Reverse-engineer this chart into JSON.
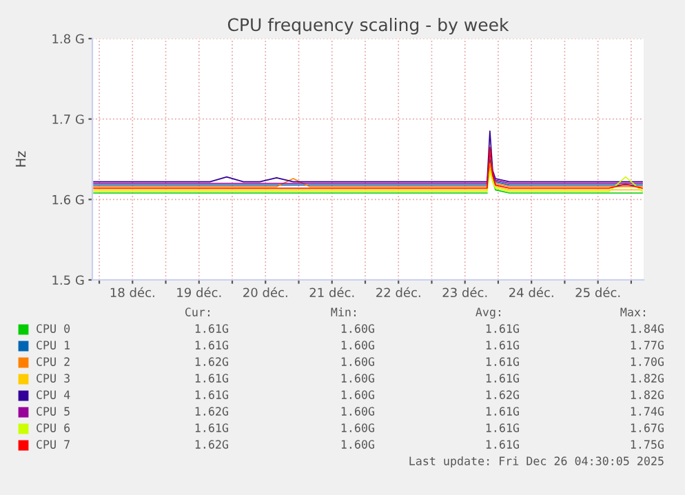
{
  "chart_data": {
    "type": "line",
    "title": "CPU frequency scaling - by week",
    "ylabel": "Hz",
    "x": [
      "2025-12-17T22:00",
      "2025-12-18T04:00",
      "2025-12-18T10:00",
      "2025-12-18T16:00",
      "2025-12-18T22:00",
      "2025-12-19T04:00",
      "2025-12-19T10:00",
      "2025-12-19T16:00",
      "2025-12-19T22:00",
      "2025-12-20T04:00",
      "2025-12-20T10:00",
      "2025-12-20T16:00",
      "2025-12-20T22:00",
      "2025-12-21T04:00",
      "2025-12-21T10:00",
      "2025-12-21T16:00",
      "2025-12-21T22:00",
      "2025-12-22T04:00",
      "2025-12-22T10:00",
      "2025-12-22T16:00",
      "2025-12-22T22:00",
      "2025-12-23T04:00",
      "2025-12-23T10:00",
      "2025-12-23T16:00",
      "2025-12-23T19:00",
      "2025-12-23T20:00",
      "2025-12-23T21:00",
      "2025-12-23T22:00",
      "2025-12-23T23:00",
      "2025-12-24T04:00",
      "2025-12-24T10:00",
      "2025-12-24T16:00",
      "2025-12-24T22:00",
      "2025-12-25T04:00",
      "2025-12-25T10:00",
      "2025-12-25T16:00",
      "2025-12-25T22:00",
      "2025-12-26T04:00"
    ],
    "series": [
      {
        "name": "CPU 0",
        "color": "#00cc00",
        "values": [
          1.608,
          1.608,
          1.608,
          1.608,
          1.608,
          1.608,
          1.608,
          1.608,
          1.608,
          1.608,
          1.608,
          1.608,
          1.608,
          1.608,
          1.608,
          1.608,
          1.608,
          1.608,
          1.608,
          1.608,
          1.608,
          1.608,
          1.608,
          1.608,
          1.608,
          1.608,
          null,
          1.624,
          1.612,
          1.608,
          1.608,
          1.608,
          1.608,
          1.608,
          1.608,
          1.608,
          1.608,
          1.608
        ]
      },
      {
        "name": "CPU 1",
        "color": "#0066b3",
        "values": [
          1.618,
          1.618,
          1.618,
          1.618,
          1.618,
          1.618,
          1.618,
          1.618,
          1.618,
          1.618,
          1.618,
          1.618,
          1.618,
          1.618,
          1.618,
          1.618,
          1.618,
          1.618,
          1.618,
          1.618,
          1.618,
          1.618,
          1.618,
          1.618,
          1.618,
          1.618,
          1.65,
          1.632,
          1.622,
          1.618,
          1.618,
          1.618,
          1.618,
          1.618,
          1.618,
          1.618,
          1.618,
          1.618
        ]
      },
      {
        "name": "CPU 2",
        "color": "#ff8000",
        "values": [
          1.616,
          1.616,
          1.616,
          1.616,
          1.616,
          1.616,
          1.616,
          1.616,
          1.616,
          1.616,
          1.616,
          1.616,
          1.626,
          1.616,
          1.616,
          1.616,
          1.616,
          1.616,
          1.616,
          1.616,
          1.616,
          1.616,
          1.616,
          1.616,
          1.616,
          1.616,
          1.645,
          1.628,
          1.62,
          1.616,
          1.616,
          1.616,
          1.616,
          1.616,
          1.616,
          1.616,
          1.616,
          1.616
        ]
      },
      {
        "name": "CPU 3",
        "color": "#ffcc00",
        "values": [
          1.612,
          1.612,
          1.612,
          1.612,
          1.612,
          1.612,
          1.612,
          1.612,
          1.612,
          1.612,
          1.612,
          1.612,
          1.612,
          1.612,
          1.612,
          1.612,
          1.612,
          1.612,
          1.612,
          1.612,
          1.612,
          1.612,
          1.612,
          1.612,
          1.612,
          1.612,
          1.638,
          1.626,
          1.616,
          1.612,
          1.612,
          1.612,
          1.612,
          1.612,
          1.612,
          1.612,
          1.612,
          1.612
        ]
      },
      {
        "name": "CPU 4",
        "color": "#330099",
        "values": [
          1.622,
          1.622,
          1.622,
          1.622,
          1.622,
          1.622,
          1.622,
          1.622,
          1.628,
          1.622,
          1.622,
          1.627,
          1.622,
          1.622,
          1.622,
          1.622,
          1.622,
          1.622,
          1.622,
          1.622,
          1.622,
          1.622,
          1.622,
          1.622,
          1.622,
          1.622,
          1.685,
          1.636,
          1.626,
          1.622,
          1.622,
          1.622,
          1.622,
          1.622,
          1.622,
          1.622,
          1.622,
          1.622
        ]
      },
      {
        "name": "CPU 5",
        "color": "#990099",
        "values": [
          1.62,
          1.62,
          1.62,
          1.62,
          1.62,
          1.62,
          1.62,
          1.62,
          1.62,
          1.62,
          1.62,
          1.62,
          1.62,
          1.62,
          1.62,
          1.62,
          1.62,
          1.62,
          1.62,
          1.62,
          1.62,
          1.62,
          1.62,
          1.62,
          1.62,
          1.62,
          1.66,
          1.634,
          1.624,
          1.62,
          1.62,
          1.62,
          1.62,
          1.62,
          1.62,
          1.62,
          1.62,
          1.62
        ]
      },
      {
        "name": "CPU 6",
        "color": "#ccff00",
        "values": [
          1.61,
          1.61,
          1.61,
          1.61,
          1.61,
          1.61,
          1.61,
          1.61,
          1.61,
          1.61,
          1.61,
          1.61,
          1.61,
          1.61,
          1.61,
          1.61,
          1.61,
          1.61,
          1.61,
          1.61,
          1.61,
          1.61,
          1.61,
          1.61,
          1.61,
          1.61,
          1.635,
          1.622,
          1.614,
          1.61,
          1.61,
          1.61,
          1.61,
          1.61,
          1.61,
          1.61,
          1.628,
          1.61
        ]
      },
      {
        "name": "CPU 7",
        "color": "#ff0000",
        "values": [
          1.614,
          1.614,
          1.614,
          1.614,
          1.614,
          1.614,
          1.614,
          1.614,
          1.614,
          1.614,
          1.614,
          1.614,
          1.614,
          1.614,
          1.614,
          1.614,
          1.614,
          1.614,
          1.614,
          1.614,
          1.614,
          1.614,
          1.614,
          1.614,
          1.614,
          1.614,
          1.665,
          1.63,
          1.618,
          1.614,
          1.614,
          1.614,
          1.614,
          1.614,
          1.614,
          1.614,
          1.619,
          1.614
        ]
      }
    ],
    "xlim": [
      "2025-12-17T21:30",
      "2025-12-26T04:30"
    ],
    "xticks": [
      {
        "value": "2025-12-18T00:00",
        "label": null
      },
      {
        "value": "2025-12-18T12:00",
        "label": "18 déc."
      },
      {
        "value": "2025-12-19T00:00",
        "label": null
      },
      {
        "value": "2025-12-19T12:00",
        "label": "19 déc."
      },
      {
        "value": "2025-12-20T00:00",
        "label": null
      },
      {
        "value": "2025-12-20T12:00",
        "label": "20 déc."
      },
      {
        "value": "2025-12-21T00:00",
        "label": null
      },
      {
        "value": "2025-12-21T12:00",
        "label": "21 déc."
      },
      {
        "value": "2025-12-22T00:00",
        "label": null
      },
      {
        "value": "2025-12-22T12:00",
        "label": "22 déc."
      },
      {
        "value": "2025-12-23T00:00",
        "label": null
      },
      {
        "value": "2025-12-23T12:00",
        "label": "23 déc."
      },
      {
        "value": "2025-12-24T00:00",
        "label": null
      },
      {
        "value": "2025-12-24T12:00",
        "label": "24 déc."
      },
      {
        "value": "2025-12-25T00:00",
        "label": null
      },
      {
        "value": "2025-12-25T12:00",
        "label": "25 déc."
      },
      {
        "value": "2025-12-26T00:00",
        "label": null
      }
    ],
    "ylim": [
      1.5,
      1.8
    ],
    "yticks": [
      {
        "value": 1.5,
        "label": "1.5 G"
      },
      {
        "value": 1.6,
        "label": "1.6 G"
      },
      {
        "value": 1.7,
        "label": "1.7 G"
      },
      {
        "value": 1.8,
        "label": "1.8 G"
      }
    ],
    "grid": true,
    "legend": "bottom",
    "marker": "none",
    "line_style": "solid",
    "annotations": [
      "Cur:",
      "Min:",
      "Avg:",
      "Max:",
      "1.61G",
      "1.60G",
      "1.61G",
      "1.84G",
      "1.61G",
      "1.60G",
      "1.61G",
      "1.77G",
      "1.62G",
      "1.60G",
      "1.61G",
      "1.70G",
      "1.61G",
      "1.60G",
      "1.61G",
      "1.82G",
      "1.61G",
      "1.60G",
      "1.62G",
      "1.82G",
      "1.62G",
      "1.60G",
      "1.61G",
      "1.74G",
      "1.61G",
      "1.60G",
      "1.61G",
      "1.67G",
      "1.62G",
      "1.60G",
      "1.61G",
      "1.75G",
      "Last update: Fri Dec 26 04:30:05 2025"
    ]
  }
}
